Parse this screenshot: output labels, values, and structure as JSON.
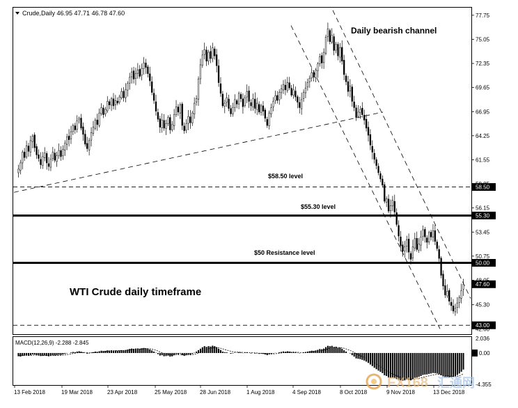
{
  "chart_data": {
    "type": "candlestick",
    "symbol_header": "Crude,Daily  46.95 47.71 46.78 47.60",
    "title": "WTI Crude daily timeframe",
    "channel_label": "Daily bearish channel",
    "price_axis": {
      "ylim": [
        42.0,
        78.6
      ],
      "ticks": [
        "77.75",
        "75.05",
        "72.35",
        "69.65",
        "66.95",
        "64.25",
        "61.55",
        "58.85",
        "56.15",
        "53.45",
        "50.75",
        "48.05",
        "45.30",
        "42.60"
      ]
    },
    "x_axis": {
      "ticks": [
        "13 Feb 2018",
        "19 Mar 2018",
        "23 Apr 2018",
        "25 May 2018",
        "28 Jun 2018",
        "1 Aug 2018",
        "4 Sep 2018",
        "8 Oct 2018",
        "9 Nov 2018",
        "13 Dec 2018"
      ]
    },
    "levels": [
      {
        "value": 58.5,
        "label": "$58.50 level",
        "tag": "58.50",
        "style": "dashed"
      },
      {
        "value": 55.3,
        "label": "$55.30 level",
        "tag": "55.30",
        "style": "solid"
      },
      {
        "value": 50.0,
        "label": "$50 Resistance level",
        "tag": "50.00",
        "style": "solid"
      },
      {
        "value": 43.0,
        "label": "",
        "tag": "43.00",
        "style": "dashed"
      }
    ],
    "last_price": {
      "value": 47.6,
      "tag": "47.60"
    },
    "closes": [
      60.5,
      61.2,
      62.4,
      61.8,
      63.1,
      62.5,
      63.7,
      64.2,
      62.9,
      62.1,
      61.7,
      61.0,
      61.9,
      62.3,
      61.2,
      60.8,
      61.6,
      62.4,
      61.5,
      62.0,
      62.6,
      61.9,
      62.7,
      63.4,
      64.1,
      63.8,
      64.7,
      65.4,
      64.9,
      65.9,
      66.2,
      65.1,
      64.4,
      63.3,
      62.8,
      63.7,
      64.6,
      65.2,
      66.0,
      65.5,
      66.8,
      67.4,
      66.6,
      67.2,
      68.1,
      67.7,
      68.4,
      67.6,
      68.2,
      67.9,
      68.6,
      69.2,
      68.5,
      69.4,
      70.1,
      70.8,
      71.4,
      70.6,
      71.2,
      71.6,
      70.9,
      71.8,
      72.4,
      71.9,
      71.2,
      70.4,
      69.1,
      68.2,
      67.0,
      66.1,
      65.2,
      66.0,
      65.1,
      65.6,
      66.3,
      64.9,
      65.5,
      66.6,
      67.5,
      66.9,
      67.7,
      65.4,
      64.8,
      65.6,
      66.4,
      65.7,
      66.8,
      67.9,
      68.4,
      70.6,
      72.2,
      73.3,
      73.9,
      72.6,
      73.6,
      72.9,
      74.1,
      73.2,
      72.1,
      70.2,
      69.0,
      67.6,
      67.9,
      68.5,
      67.3,
      66.7,
      67.4,
      68.3,
      67.8,
      69.0,
      68.4,
      67.5,
      68.5,
      69.2,
      68.1,
      67.6,
      68.4,
      67.3,
      67.9,
      66.9,
      67.6,
      67.0,
      66.2,
      65.4,
      66.8,
      67.4,
      68.1,
      68.7,
      68.2,
      69.1,
      69.5,
      70.0,
      69.4,
      70.2,
      69.6,
      68.8,
      69.4,
      68.6,
      68.0,
      67.4,
      68.3,
      69.1,
      69.6,
      70.2,
      70.7,
      71.3,
      70.8,
      71.6,
      72.3,
      73.1,
      72.4,
      73.6,
      75.3,
      76.2,
      74.8,
      75.5,
      73.8,
      74.5,
      73.2,
      74.1,
      72.6,
      71.1,
      70.3,
      69.2,
      69.8,
      68.1,
      67.4,
      66.3,
      66.9,
      67.2,
      66.6,
      66.0,
      65.1,
      64.3,
      63.2,
      62.4,
      61.6,
      60.9,
      60.1,
      59.4,
      58.7,
      56.9,
      57.2,
      55.8,
      56.4,
      57.0,
      55.7,
      54.3,
      53.0,
      51.9,
      51.3,
      51.8,
      52.6,
      51.2,
      50.4,
      51.8,
      52.7,
      51.5,
      52.1,
      52.9,
      53.7,
      52.9,
      52.3,
      53.4,
      52.9,
      53.6,
      52.4,
      51.6,
      50.5,
      48.6,
      47.4,
      46.4,
      46.8,
      45.7,
      45.2,
      44.6,
      44.9,
      45.5,
      46.1,
      46.9,
      47.6
    ],
    "macd": {
      "label": "MACD(12,26,9) -2.288 -2.845",
      "ylim": [
        -4.355,
        2.036
      ],
      "ticks": [
        "2.036",
        "0.00",
        "-4.355"
      ],
      "histogram": [
        -0.45,
        -0.5,
        -0.4,
        -0.35,
        -0.3,
        -0.38,
        -0.3,
        -0.2,
        -0.22,
        -0.3,
        -0.36,
        -0.42,
        -0.4,
        -0.35,
        -0.4,
        -0.45,
        -0.38,
        -0.3,
        -0.35,
        -0.3,
        -0.25,
        -0.28,
        -0.2,
        -0.12,
        -0.05,
        0.0,
        0.08,
        0.15,
        0.12,
        0.2,
        0.25,
        0.18,
        0.1,
        0.0,
        -0.1,
        -0.05,
        0.05,
        0.12,
        0.2,
        0.16,
        0.25,
        0.32,
        0.28,
        0.3,
        0.36,
        0.34,
        0.38,
        0.33,
        0.35,
        0.32,
        0.36,
        0.4,
        0.36,
        0.42,
        0.48,
        0.56,
        0.62,
        0.58,
        0.62,
        0.64,
        0.6,
        0.66,
        0.7,
        0.66,
        0.6,
        0.5,
        0.36,
        0.2,
        0.04,
        -0.15,
        -0.35,
        -0.3,
        -0.45,
        -0.42,
        -0.36,
        -0.5,
        -0.46,
        -0.3,
        -0.15,
        -0.18,
        -0.08,
        -0.3,
        -0.4,
        -0.3,
        -0.2,
        -0.25,
        -0.12,
        0.05,
        0.2,
        0.4,
        0.6,
        0.8,
        0.95,
        0.85,
        0.95,
        0.9,
        1.02,
        0.95,
        0.82,
        0.6,
        0.42,
        0.2,
        0.12,
        0.1,
        0.0,
        -0.1,
        -0.05,
        0.05,
        0.02,
        0.12,
        0.08,
        -0.02,
        0.05,
        0.1,
        0.0,
        -0.06,
        0.0,
        -0.08,
        -0.05,
        -0.12,
        -0.08,
        -0.12,
        -0.2,
        -0.3,
        -0.2,
        -0.12,
        -0.05,
        0.02,
        0.0,
        0.1,
        0.16,
        0.22,
        0.18,
        0.24,
        0.2,
        0.12,
        0.16,
        0.1,
        0.04,
        -0.04,
        0.0,
        0.08,
        0.14,
        0.2,
        0.26,
        0.32,
        0.3,
        0.36,
        0.44,
        0.55,
        0.52,
        0.62,
        0.82,
        1.0,
        0.95,
        1.0,
        0.85,
        0.88,
        0.72,
        0.75,
        0.6,
        0.38,
        0.2,
        0.0,
        -0.05,
        -0.3,
        -0.5,
        -0.75,
        -0.8,
        -0.85,
        -0.95,
        -1.05,
        -1.2,
        -1.38,
        -1.6,
        -1.82,
        -2.05,
        -2.25,
        -2.45,
        -2.62,
        -2.8,
        -3.1,
        -3.2,
        -3.4,
        -3.45,
        -3.4,
        -3.5,
        -3.62,
        -3.72,
        -3.8,
        -3.85,
        -3.8,
        -3.7,
        -3.75,
        -3.8,
        -3.62,
        -3.45,
        -3.42,
        -3.32,
        -3.2,
        -3.05,
        -3.0,
        -2.98,
        -2.9,
        -2.85,
        -2.78,
        -2.8,
        -2.85,
        -2.95,
        -3.1,
        -3.25,
        -3.38,
        -3.35,
        -3.4,
        -3.38,
        -3.32,
        -3.22,
        -3.05,
        -2.85,
        -2.6,
        -2.3
      ],
      "signal": [
        -0.3,
        -0.35,
        -0.37,
        -0.36,
        -0.35,
        -0.35,
        -0.34,
        -0.31,
        -0.29,
        -0.29,
        -0.3,
        -0.32,
        -0.34,
        -0.34,
        -0.35,
        -0.37,
        -0.37,
        -0.36,
        -0.36,
        -0.35,
        -0.33,
        -0.32,
        -0.3,
        -0.27,
        -0.23,
        -0.18,
        -0.13,
        -0.07,
        -0.03,
        0.02,
        0.07,
        0.09,
        0.09,
        0.07,
        0.04,
        0.02,
        0.03,
        0.05,
        0.08,
        0.1,
        0.13,
        0.17,
        0.2,
        0.22,
        0.25,
        0.27,
        0.3,
        0.31,
        0.32,
        0.32,
        0.33,
        0.34,
        0.35,
        0.36,
        0.39,
        0.42,
        0.46,
        0.49,
        0.52,
        0.54,
        0.55,
        0.57,
        0.6,
        0.61,
        0.61,
        0.59,
        0.54,
        0.47,
        0.38,
        0.27,
        0.14,
        0.05,
        -0.05,
        -0.13,
        -0.18,
        -0.24,
        -0.28,
        -0.28,
        -0.25,
        -0.24,
        -0.21,
        -0.23,
        -0.26,
        -0.27,
        -0.26,
        -0.26,
        -0.23,
        -0.17,
        -0.1,
        0.0,
        0.12,
        0.26,
        0.4,
        0.5,
        0.59,
        0.65,
        0.72,
        0.77,
        0.78,
        0.74,
        0.67,
        0.58,
        0.49,
        0.41,
        0.33,
        0.24,
        0.18,
        0.15,
        0.12,
        0.12,
        0.11,
        0.09,
        0.08,
        0.08,
        0.06,
        0.04,
        0.03,
        0.01,
        0.0,
        -0.03,
        -0.04,
        -0.06,
        -0.09,
        -0.13,
        -0.14,
        -0.14,
        -0.12,
        -0.09,
        -0.07,
        -0.04,
        0.0,
        0.04,
        0.07,
        0.1,
        0.12,
        0.12,
        0.13,
        0.12,
        0.11,
        0.08,
        0.06,
        0.07,
        0.08,
        0.11,
        0.14,
        0.18,
        0.2,
        0.23,
        0.27,
        0.33,
        0.37,
        0.42,
        0.5,
        0.6,
        0.67,
        0.74,
        0.76,
        0.78,
        0.77,
        0.76,
        0.73,
        0.66,
        0.57,
        0.46,
        0.36,
        0.23,
        0.08,
        -0.09,
        -0.23,
        -0.36,
        -0.48,
        -0.6,
        -0.72,
        -0.86,
        -1.01,
        -1.17,
        -1.35,
        -1.53,
        -1.71,
        -1.89,
        -2.07,
        -2.27,
        -2.46,
        -2.64,
        -2.8,
        -2.92,
        -3.04,
        -3.15,
        -3.27,
        -3.38,
        -3.47,
        -3.54,
        -3.57,
        -3.61,
        -3.65,
        -3.64,
        -3.6,
        -3.57,
        -3.52,
        -3.46,
        -3.38,
        -3.3,
        -3.24,
        -3.17,
        -3.11,
        -3.05,
        -3.0,
        -2.97,
        -2.97,
        -3.0,
        -3.05,
        -3.11,
        -3.16,
        -3.21,
        -3.24,
        -3.26,
        -3.25,
        -3.21,
        -3.14,
        -3.04,
        -2.9
      ]
    },
    "annotations": [
      {
        "text": "Daily bearish channel"
      },
      {
        "text": "$58.50 level"
      },
      {
        "text": "$55.30 level"
      },
      {
        "text": "$50 Resistance level"
      },
      {
        "text": "WTI Crude daily timeframe"
      }
    ],
    "watermark": "FX168 汇通网",
    "colors": {
      "up": "#ffffff",
      "down": "#000000",
      "wick": "#000000",
      "tag_bg": "#000000",
      "tag_text": "#ffffff",
      "grid": "#000000"
    }
  }
}
